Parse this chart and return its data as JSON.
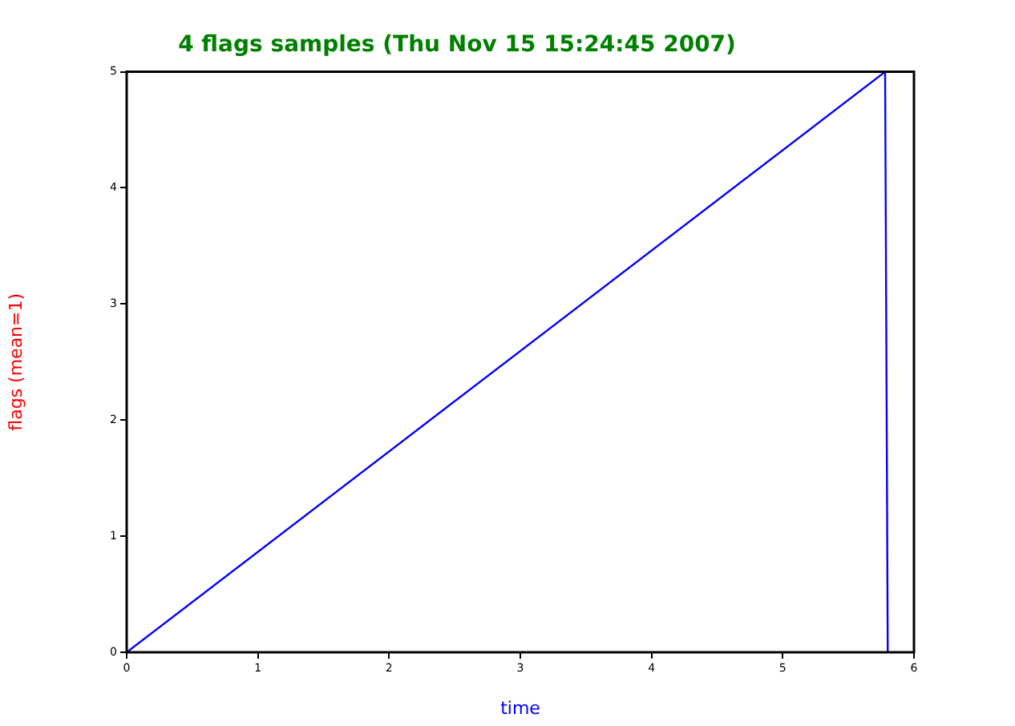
{
  "chart_data": {
    "type": "line",
    "title": "4 flags samples (Thu Nov 15 15:24:45 2007)",
    "xlabel": "time",
    "ylabel": "flags (mean=1)",
    "series": [
      {
        "color": "#0000ff",
        "x": [
          0,
          5.78,
          5.8
        ],
        "values": [
          0,
          5,
          0
        ]
      }
    ],
    "xlim": [
      0,
      6
    ],
    "xticks": [
      0,
      1,
      2,
      3,
      4,
      5,
      6
    ],
    "ylim": [
      0,
      5
    ],
    "yticks": [
      0,
      1,
      2,
      3,
      4,
      5
    ],
    "grid": false,
    "legend": false,
    "marker": "none",
    "line_style": "solid"
  }
}
